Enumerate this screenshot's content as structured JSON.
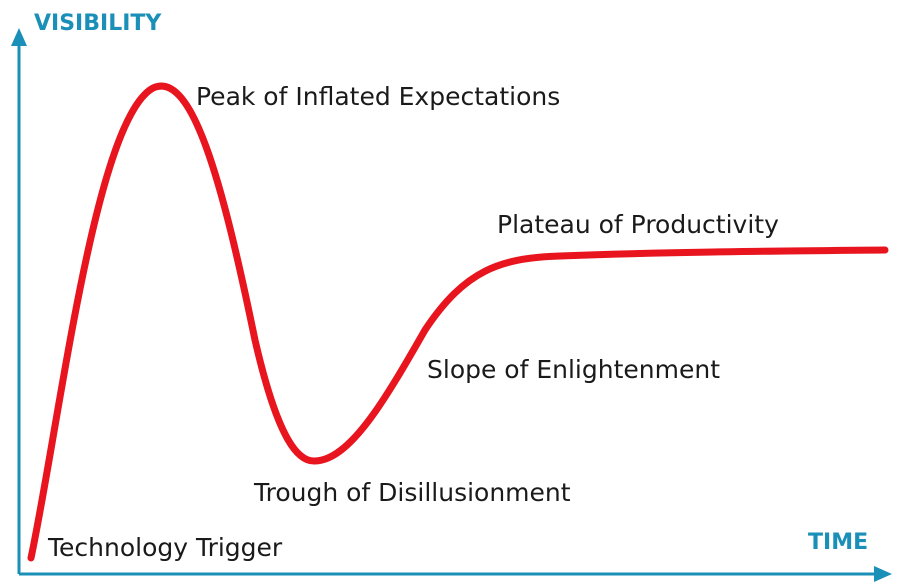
{
  "axes": {
    "y_title": "VISIBILITY",
    "x_title": "TIME",
    "color": "#1a8fb8"
  },
  "curve": {
    "color": "#e8141e",
    "shape": "hype-cycle"
  },
  "phases": [
    {
      "label": "Technology Trigger"
    },
    {
      "label": "Peak of Inflated Expectations"
    },
    {
      "label": "Trough of Disillusionment"
    },
    {
      "label": "Slope of Enlightenment"
    },
    {
      "label": "Plateau of Productivity"
    }
  ]
}
